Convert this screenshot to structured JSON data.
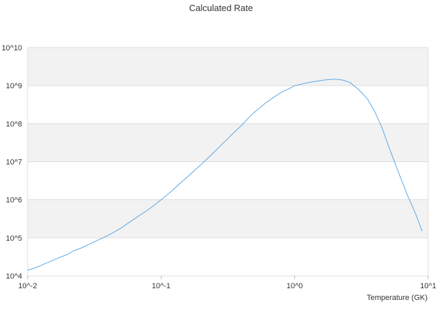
{
  "chart_data": {
    "type": "line",
    "title": "Calculated Rate",
    "xlabel": "Temperature (GK)",
    "ylabel": "",
    "x_scale": "log",
    "y_scale": "log",
    "xlim": [
      0.01,
      10
    ],
    "ylim": [
      10000,
      10000000000
    ],
    "x_tick_labels": [
      "10^-2",
      "10^-1",
      "10^0",
      "10^1"
    ],
    "y_tick_labels": [
      "10^4",
      "10^5",
      "10^6",
      "10^7",
      "10^8",
      "10^9",
      "10^10"
    ],
    "grid": true,
    "banded_background": true,
    "legend": "none",
    "colors": {
      "line": "#5aa7e6",
      "band": "#f2f2f2",
      "grid": "#dddddd"
    },
    "series": [
      {
        "x": [
          0.01,
          0.011,
          0.012,
          0.014,
          0.016,
          0.018,
          0.02,
          0.022,
          0.025,
          0.03,
          0.035,
          0.04,
          0.045,
          0.05,
          0.06,
          0.07,
          0.08,
          0.09,
          0.1,
          0.12,
          0.14,
          0.16,
          0.18,
          0.2,
          0.25,
          0.3,
          0.35,
          0.4,
          0.45,
          0.5,
          0.6,
          0.7,
          0.8,
          0.9,
          1.0,
          1.2,
          1.4,
          1.6,
          1.8,
          2.0,
          2.3,
          2.6,
          3.0,
          3.5,
          4.0,
          4.5,
          5.0,
          6.0,
          7.0,
          8.0,
          9.0
        ],
        "y": [
          14000,
          15500,
          17500,
          22000,
          27000,
          32000,
          37000,
          45000,
          53000,
          72000,
          93000,
          115000,
          145000,
          180000,
          280000,
          400000,
          550000,
          750000,
          1000000,
          1700000,
          2800000,
          4200000,
          6100000,
          8500000,
          18000000,
          34000000,
          58000000,
          90000000,
          140000000,
          200000000,
          340000000,
          500000000,
          680000000,
          820000000,
          1000000000,
          1150000000,
          1280000000,
          1380000000,
          1440000000,
          1480000000,
          1400000000,
          1200000000,
          800000000,
          450000000,
          200000000,
          80000000,
          28000000,
          5200000,
          1300000,
          450000,
          150000
        ]
      }
    ]
  }
}
